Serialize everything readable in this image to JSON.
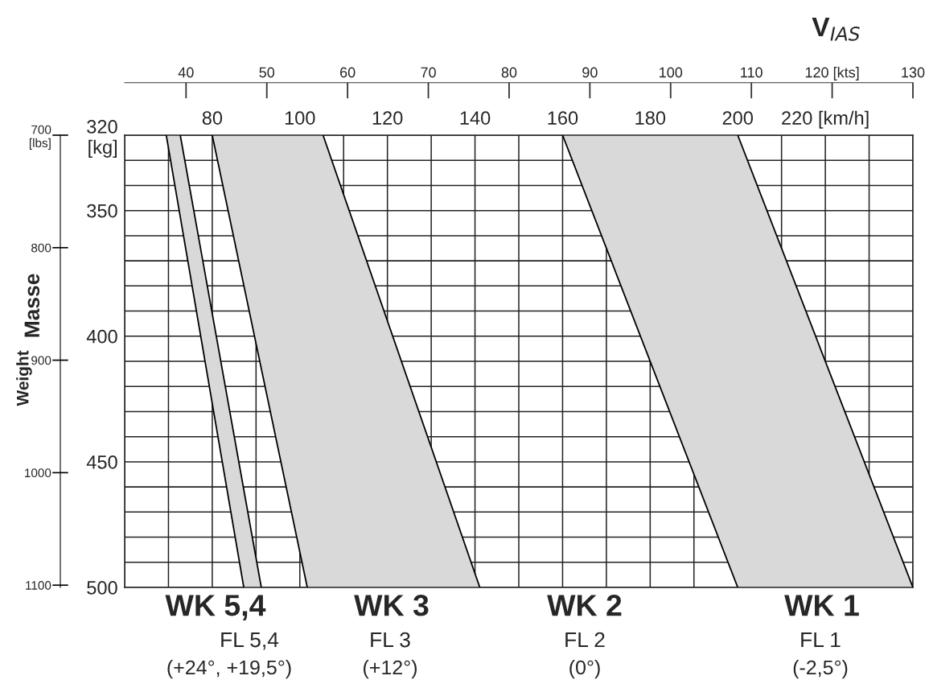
{
  "chart_data": {
    "type": "area",
    "series": [
      {
        "color": "#d9d9d9",
        "x": [
          69.5,
          72.7,
          91.2,
          87.2
        ],
        "values": [
          320,
          320,
          500,
          500
        ]
      },
      {
        "color": "#d9d9d9",
        "x": [
          80,
          105.3,
          141.1,
          101.7
        ],
        "values": [
          320,
          320,
          500,
          500
        ]
      },
      {
        "color": "#d9d9d9",
        "x": [
          160,
          200,
          240,
          200
        ],
        "values": [
          320,
          320,
          500,
          500
        ]
      }
    ],
    "xlim": [
      60,
      240
    ],
    "xticks": [
      {
        "value": 60,
        "label": null
      },
      {
        "value": 70,
        "label": null
      },
      80,
      {
        "value": 90,
        "label": null
      },
      100,
      {
        "value": 110,
        "label": null
      },
      120,
      {
        "value": 130,
        "label": null
      },
      140,
      {
        "value": 150,
        "label": null
      },
      160,
      {
        "value": 170,
        "label": null
      },
      180,
      {
        "value": 190,
        "label": null
      },
      200,
      {
        "value": 210,
        "label": null
      },
      {
        "value": 220,
        "label": "220 [km/h]"
      },
      {
        "value": 230,
        "label": null
      },
      {
        "value": 240,
        "label": null
      }
    ],
    "ylim": [
      500,
      320
    ],
    "yticks": [
      {
        "value": 320,
        "label": "320\n[kg]"
      },
      {
        "value": 330,
        "label": null
      },
      {
        "value": 340,
        "label": null
      },
      350,
      {
        "value": 360,
        "label": null
      },
      {
        "value": 370,
        "label": null
      },
      {
        "value": 380,
        "label": null
      },
      {
        "value": 390,
        "label": null
      },
      400,
      {
        "value": 410,
        "label": null
      },
      {
        "value": 420,
        "label": null
      },
      {
        "value": 430,
        "label": null
      },
      {
        "value": 440,
        "label": null
      },
      450,
      {
        "value": 460,
        "label": null
      },
      {
        "value": 470,
        "label": null
      },
      {
        "value": 480,
        "label": null
      },
      {
        "value": 490,
        "label": null
      },
      500
    ],
    "x2lim": [
      32.4,
      130
    ],
    "x2ticks": [
      40,
      50,
      60,
      70,
      80,
      90,
      100,
      110,
      {
        "value": 120,
        "label": "120 [kts]"
      },
      130
    ],
    "x2label": "V$_{IAS}$",
    "y2lim": [
      1102,
      700
    ],
    "y2ticks": [
      {
        "value": 700,
        "label": "700\n[lbs]"
      },
      800,
      900,
      1000,
      1100
    ],
    "grid": true,
    "annotations": [
      "WK 5,4",
      "FL 5,4",
      "(+24°, +19,5°)",
      "WK 3",
      "FL 3",
      "(+12°)",
      "WK 2",
      "FL 2",
      "(0°)",
      "WK 1",
      "FL 1",
      "(-2,5°)",
      "Masse",
      "Weight"
    ]
  }
}
